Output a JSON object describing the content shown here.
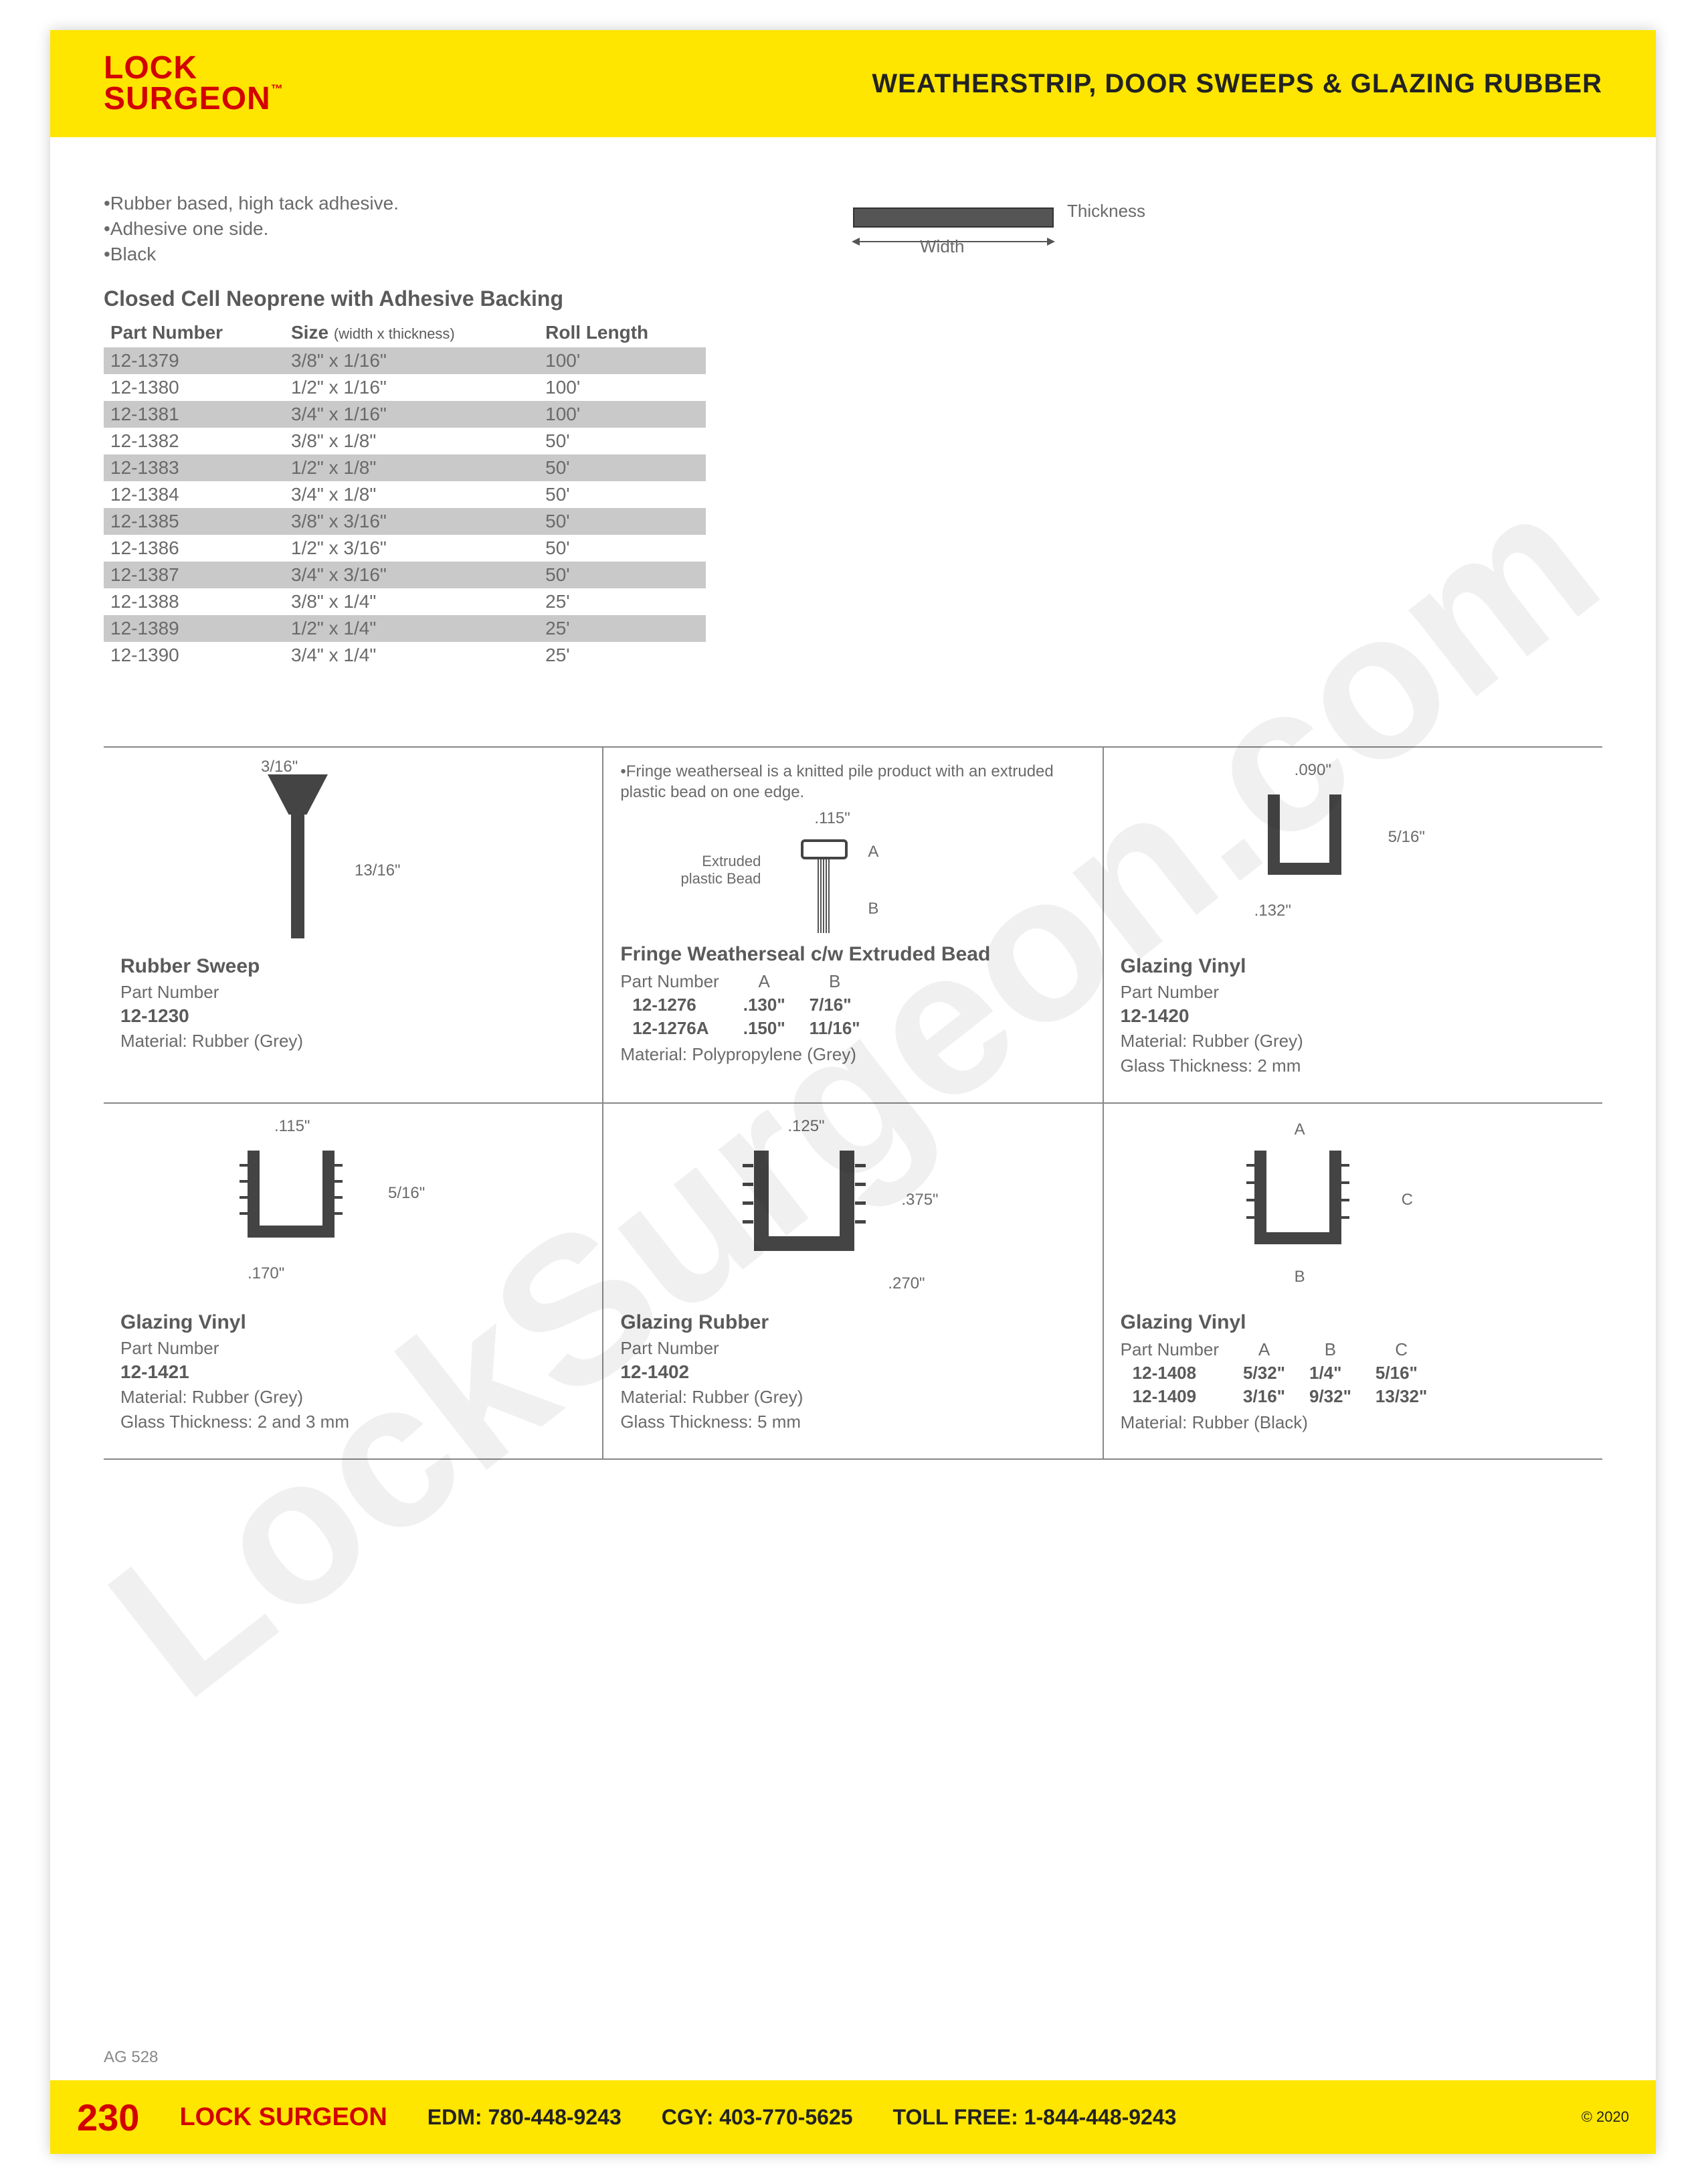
{
  "watermark": "LockSurgeon.com",
  "header": {
    "logo_line1": "LOCK",
    "logo_line2": "SURGEON",
    "title": "WEATHERSTRIP, DOOR SWEEPS & GLAZING RUBBER"
  },
  "bullets": [
    "•Rubber based, high tack adhesive.",
    "•Adhesive one side.",
    "•Black"
  ],
  "thickness_diagram": {
    "label_thickness": "Thickness",
    "label_width": "Width"
  },
  "neoprene": {
    "title": "Closed Cell Neoprene with Adhesive Backing",
    "columns": [
      "Part Number",
      "Size",
      "Roll Length"
    ],
    "size_sub": "(width x thickness)",
    "rows": [
      {
        "pn": "12-1379",
        "size": "3/8\" x 1/16\"",
        "len": "100'"
      },
      {
        "pn": "12-1380",
        "size": "1/2\" x 1/16\"",
        "len": "100'"
      },
      {
        "pn": "12-1381",
        "size": "3/4\" x 1/16\"",
        "len": "100'"
      },
      {
        "pn": "12-1382",
        "size": "3/8\" x 1/8\"",
        "len": "50'"
      },
      {
        "pn": "12-1383",
        "size": "1/2\" x 1/8\"",
        "len": "50'"
      },
      {
        "pn": "12-1384",
        "size": "3/4\" x 1/8\"",
        "len": "50'"
      },
      {
        "pn": "12-1385",
        "size": "3/8\" x 3/16\"",
        "len": "50'"
      },
      {
        "pn": "12-1386",
        "size": "1/2\" x 3/16\"",
        "len": "50'"
      },
      {
        "pn": "12-1387",
        "size": "3/4\" x 3/16\"",
        "len": "50'"
      },
      {
        "pn": "12-1388",
        "size": "3/8\" x 1/4\"",
        "len": "25'"
      },
      {
        "pn": "12-1389",
        "size": "1/2\" x 1/4\"",
        "len": "25'"
      },
      {
        "pn": "12-1390",
        "size": "3/4\" x 1/4\"",
        "len": "25'"
      }
    ]
  },
  "products": {
    "rubber_sweep": {
      "title": "Rubber Sweep",
      "pn_label": "Part Number",
      "pn": "12-1230",
      "material": "Material: Rubber (Grey)",
      "dim_top": "3/16\"",
      "dim_side": "13/16\""
    },
    "fringe": {
      "note": "•Fringe weatherseal is a knitted pile product with an extruded plastic bead on one edge.",
      "title": "Fringe Weatherseal c/w Extruded Bead",
      "pn_label": "Part Number",
      "col_a": "A",
      "col_b": "B",
      "rows": [
        {
          "pn": "12-1276",
          "a": ".130\"",
          "b": "7/16\""
        },
        {
          "pn": "12-1276A",
          "a": ".150\"",
          "b": "11/16\""
        }
      ],
      "material": "Material: Polypropylene (Grey)",
      "dim_top": ".115\"",
      "label_bead": "Extruded plastic Bead",
      "label_a": "A",
      "label_b": "B"
    },
    "glazing_1420": {
      "title": "Glazing Vinyl",
      "pn_label": "Part Number",
      "pn": "12-1420",
      "material": "Material: Rubber (Grey)",
      "glass": "Glass Thickness: 2 mm",
      "dim_top": ".090\"",
      "dim_side": "5/16\"",
      "dim_bottom": ".132\""
    },
    "glazing_1421": {
      "title": "Glazing Vinyl",
      "pn_label": "Part Number",
      "pn": "12-1421",
      "material": "Material: Rubber (Grey)",
      "glass": "Glass Thickness: 2 and 3 mm",
      "dim_top": ".115\"",
      "dim_side": "5/16\"",
      "dim_bottom": ".170\""
    },
    "glazing_1402": {
      "title": "Glazing Rubber",
      "pn_label": "Part Number",
      "pn": "12-1402",
      "material": "Material: Rubber (Grey)",
      "glass": "Glass Thickness: 5 mm",
      "dim_top": ".125\"",
      "dim_side": ".375\"",
      "dim_bottom": ".270\""
    },
    "glazing_1408": {
      "title": "Glazing Vinyl",
      "pn_label": "Part Number",
      "col_a": "A",
      "col_b": "B",
      "col_c": "C",
      "rows": [
        {
          "pn": "12-1408",
          "a": "5/32\"",
          "b": "1/4\"",
          "c": "5/16\""
        },
        {
          "pn": "12-1409",
          "a": "3/16\"",
          "b": "9/32\"",
          "c": "13/32\""
        }
      ],
      "material": "Material: Rubber (Black)",
      "label_a": "A",
      "label_b": "B",
      "label_c": "C"
    }
  },
  "footer": {
    "ag": "AG 528",
    "page": "230",
    "brand": "LOCK SURGEON",
    "edm": "EDM: 780-448-9243",
    "cgy": "CGY: 403-770-5625",
    "toll": "TOLL FREE: 1-844-448-9243",
    "copyright": "© 2020"
  },
  "colors": {
    "yellow": "#ffe600",
    "red": "#d30000",
    "text": "#5a5a5a",
    "alt_row": "#c9c9c9"
  }
}
